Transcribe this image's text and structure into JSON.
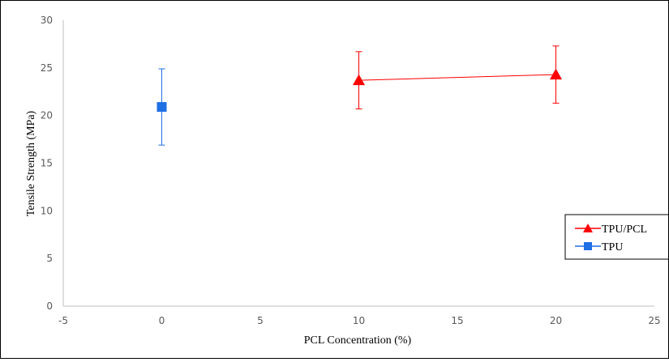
{
  "chart_data": {
    "type": "scatter",
    "title": "",
    "xlabel": "PCL Concentration (%)",
    "ylabel": "Tensile Strength (MPa)",
    "xlim": [
      -5,
      25
    ],
    "ylim": [
      0,
      30
    ],
    "xticks": [
      -5,
      0,
      5,
      10,
      15,
      20,
      25
    ],
    "yticks": [
      0,
      5,
      10,
      15,
      20,
      25,
      30
    ],
    "grid": false,
    "legend_position": "right",
    "series": [
      {
        "name": "TPU/PCL",
        "color": "#ff0000",
        "marker": "triangle",
        "line": true,
        "x": [
          10,
          20
        ],
        "y": [
          23.7,
          24.3
        ],
        "error": [
          3.0,
          3.0
        ]
      },
      {
        "name": "TPU",
        "color": "#1f6fe5",
        "marker": "square",
        "line": false,
        "x": [
          0
        ],
        "y": [
          20.9
        ],
        "error": [
          4.0
        ]
      }
    ]
  }
}
